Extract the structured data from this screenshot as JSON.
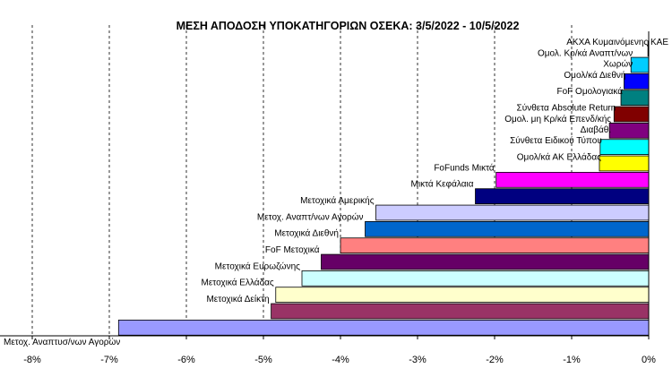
{
  "chart_data": {
    "type": "bar",
    "orientation": "horizontal",
    "title": "ΜΕΣΗ ΑΠΟΔΟΣΗ ΥΠΟΚΑΤΗΓΟΡΙΩΝ  ΟΣΕΚΑ: 3/5/2022 - 10/5/2022",
    "xlabel": "",
    "ylabel": "",
    "xlim": [
      -8,
      0
    ],
    "unit": "%",
    "grid": "vertical-dashed",
    "legend": "none",
    "x_ticks": [
      "-8%",
      "-7%",
      "-6%",
      "-5%",
      "-4%",
      "-3%",
      "-2%",
      "-1%",
      "0%"
    ],
    "categories": [
      "ΑΚΧΑ Κυμαινόμενης ΚΑΕ",
      "Ομολ. Κρ/κά Αναπτ/νων Χωρών",
      "Ομολ/κά Διεθνή",
      "FoF Ομολογιακά",
      "Σύνθετα Absolute Return",
      "Ομολ. μη Κρ/κά Επενδ/κής Διαβάθ.",
      "Σύνθετα Ειδικού Τύπου",
      "Ομολ/κά ΑΚ Ελλάδας",
      "FoFunds Μικτά",
      "Μικτά Κεφάλαια",
      "Μετοχικά Αμερικής",
      "Μετοχ. Αναπτ/νων Αγορών",
      "Μετοχικά Διεθνή",
      "FoF Μετοχικά",
      "Μετοχικά Ευρωζώνης",
      "Μετοχικά Ελλάδας",
      "Μετοχικά Δείκτη",
      "Μετοχ. Αναπτυσ/νων Αγορών"
    ],
    "values": [
      -0.01,
      -0.23,
      -0.32,
      -0.36,
      -0.45,
      -0.51,
      -0.63,
      -0.64,
      -1.98,
      -2.25,
      -3.54,
      -3.68,
      -4.0,
      -4.25,
      -4.5,
      -4.84,
      -4.9,
      -6.88
    ],
    "colors": [
      "#000080",
      "#00CCFF",
      "#0000FF",
      "#008080",
      "#800000",
      "#800080",
      "#00FFFF",
      "#FFFF00",
      "#FF00FF",
      "#000080",
      "#CCCCFF",
      "#0066CC",
      "#FF8080",
      "#660066",
      "#CCFFFF",
      "#FFFFCC",
      "#993366",
      "#9999FF"
    ]
  }
}
